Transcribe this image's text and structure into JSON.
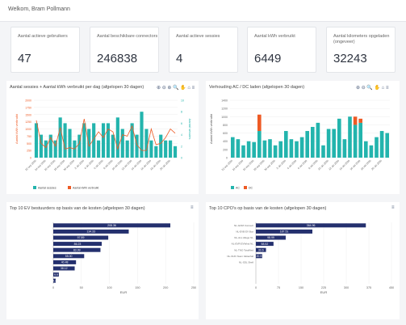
{
  "header": {
    "welcome": "Welkom, Bram Pollmann"
  },
  "cards": [
    {
      "label": "Aantal actieve gebruikers",
      "value": "47"
    },
    {
      "label": "Aantal beschikbare connectors",
      "value": "246838"
    },
    {
      "label": "Aantal actieve sessies",
      "value": "4"
    },
    {
      "label": "Aantal kWh verbruikt",
      "value": "6449"
    },
    {
      "label": "Aantal kilometers opgeladen (ongeveer)",
      "value": "32243"
    }
  ],
  "panels": {
    "sessions": {
      "title": "Aantal sessies + Aantal kWh verbruikt per dag (afgelopen 30 dagen)",
      "toolbar": "⊕ ⊖ ⊕ 🔍 ✋ ⌂ ≡"
    },
    "acdc": {
      "title": "Verhouding AC / DC laden (afgelopen 30 dagen)",
      "toolbar": "⊕ ⊖ 🔍 ✋ ⌂ ≡"
    },
    "ev": {
      "title": "Top 10 EV bestuurders op basis van de kosten (afgelopen 30 dagen)",
      "toolbar": "≡"
    },
    "cpo": {
      "title": "Top 10 CPO's op basis van de kosten (afgelopen 30 dagen)",
      "toolbar": "≡"
    }
  },
  "colors": {
    "teal": "#23b4ad",
    "orange": "#ee5a24",
    "navy": "#24306e",
    "grid": "#eeeeee"
  },
  "chart_data": [
    {
      "type": "bar",
      "title": "Aantal sessies + Aantal kWh verbruikt per dag (afgelopen 30 dagen)",
      "ylabel": "Aantal kWh verbruikt",
      "ylabel_right": "Aantal sessies",
      "ylim": [
        0,
        2000
      ],
      "ylim_right": [
        0,
        10
      ],
      "yticks": [
        "2000",
        "1750",
        "1500",
        "1250",
        "1000",
        "750",
        "500",
        "250",
        "0"
      ],
      "yticks_right": [
        "10",
        "8",
        "6",
        "4",
        "2",
        "0"
      ],
      "categories": [
        "22 sep 2020",
        "23 sep 2020",
        "24 sep 2020",
        "25 sep 2020",
        "26 sep 2020",
        "27 sep 2020",
        "28 sep 2020",
        "29 sep 2020",
        "30 sep 2020",
        "1 oct 2020",
        "2 oct 2020",
        "3 oct 2020",
        "4 oct 2020",
        "5 oct 2020",
        "6 oct 2020",
        "7 oct 2020",
        "8 oct 2020",
        "9 oct 2020",
        "10 oct 2020",
        "11 oct 2020",
        "12 oct 2020",
        "13 oct 2020",
        "14 oct 2020",
        "15 oct 2020",
        "16 oct 2020",
        "17 oct 2020",
        "18 oct 2020",
        "19 oct 2020",
        "20 oct 2020",
        "21 oct 2020"
      ],
      "xtick_labels": [
        "22 sep 2020",
        "24 sep 2020",
        "26 sep 2020",
        "28 sep 2020",
        "30 sep 2020",
        "2 okt 2020",
        "4 okt 2020",
        "6 okt 2020",
        "8 okt 2020",
        "10 okt 2020",
        "12 okt 2020",
        "14 okt 2020",
        "16 okt 2020",
        "18 okt 2020",
        "20 okt 2020"
      ],
      "series": [
        {
          "name": "Aantal sessies",
          "kind": "bar",
          "axis": "right",
          "values": [
            6,
            4,
            3,
            4,
            3,
            7,
            6,
            5,
            3,
            4,
            6,
            5,
            6,
            3,
            6,
            6,
            4,
            7,
            5,
            3,
            6,
            4,
            8,
            5,
            3,
            2,
            4,
            3,
            3,
            2
          ]
        },
        {
          "name": "Aantal kWh verbruikt",
          "kind": "line",
          "axis": "left",
          "values": [
            1300,
            500,
            350,
            700,
            400,
            1050,
            300,
            350,
            300,
            500,
            1350,
            400,
            650,
            900,
            700,
            1000,
            900,
            300,
            800,
            750,
            1100,
            450,
            250,
            250,
            1000,
            450,
            500,
            700,
            1000,
            850
          ]
        }
      ],
      "legend": "bottom"
    },
    {
      "type": "bar",
      "title": "Verhouding AC / DC laden (afgelopen 30 dagen)",
      "ylabel": "Aantal kWh verbruikt",
      "ylim": [
        0,
        1400
      ],
      "yticks": [
        "1400",
        "1200",
        "1000",
        "800",
        "600",
        "400",
        "200",
        "0"
      ],
      "stacked": true,
      "categories": [
        "22 sep 2020",
        "23 sep 2020",
        "24 sep 2020",
        "25 sep 2020",
        "26 sep 2020",
        "27 sep 2020",
        "28 sep 2020",
        "29 sep 2020",
        "30 sep 2020",
        "1 oct 2020",
        "2 oct 2020",
        "3 oct 2020",
        "4 oct 2020",
        "5 oct 2020",
        "6 oct 2020",
        "7 oct 2020",
        "8 oct 2020",
        "9 oct 2020",
        "10 oct 2020",
        "11 oct 2020",
        "12 oct 2020",
        "13 oct 2020",
        "14 oct 2020",
        "15 oct 2020",
        "16 oct 2020",
        "17 oct 2020",
        "18 oct 2020",
        "19 oct 2020",
        "20 oct 2020",
        "21 oct 2020"
      ],
      "xtick_labels": [
        "22 sep 2020",
        "24 sep 2020",
        "26 sep 2020",
        "28 sep 2020",
        "30 sep 2020",
        "2 okt 2020",
        "4 okt 2020",
        "6 okt 2020",
        "8 okt 2020",
        "10 okt 2020",
        "12 okt 2020",
        "14 okt 2020",
        "16 okt 2020",
        "18 okt 2020",
        "20 okt 2020"
      ],
      "series": [
        {
          "name": "AC",
          "values": [
            500,
            450,
            300,
            400,
            380,
            650,
            420,
            450,
            300,
            400,
            650,
            450,
            400,
            500,
            650,
            750,
            850,
            300,
            700,
            700,
            950,
            450,
            1000,
            800,
            850,
            400,
            300,
            500,
            650,
            600
          ]
        },
        {
          "name": "DC",
          "values": [
            0,
            0,
            0,
            0,
            0,
            400,
            0,
            0,
            0,
            0,
            0,
            0,
            0,
            0,
            0,
            0,
            0,
            0,
            0,
            0,
            0,
            0,
            0,
            200,
            100,
            0,
            0,
            0,
            0,
            0
          ]
        }
      ],
      "legend": "bottom"
    },
    {
      "type": "bar",
      "orientation": "horizontal",
      "title": "Top 10 EV bestuurders op basis van de kosten (afgelopen 30 dagen)",
      "xlabel": "EUR",
      "xlim": [
        0,
        250
      ],
      "xticks": [
        "0",
        "50",
        "100",
        "150",
        "200",
        "250"
      ],
      "categories": [
        "",
        "",
        "",
        "",
        "",
        "",
        "",
        "",
        "",
        ""
      ],
      "values": [
        208.36,
        134.33,
        97.89,
        86.23,
        83.99,
        55.0,
        40.48,
        38.12,
        9.9,
        4.3
      ],
      "value_labels": [
        "208.36",
        "134.33",
        "97.89",
        "86.23",
        "83.99",
        "55.00",
        "40.48",
        "38.12",
        "9.9",
        "4.3"
      ]
    },
    {
      "type": "bar",
      "orientation": "horizontal",
      "title": "Top 10 CPO's op basis van de kosten (afgelopen 30 dagen)",
      "xlabel": "EUR",
      "xlim": [
        0,
        450
      ],
      "xticks": [
        "0",
        "75",
        "150",
        "225",
        "300",
        "375",
        "450"
      ],
      "categories": [
        "NL-GOM Connect",
        "NL-EVB EV Box",
        "NL-ALL Allego NL",
        "NL-EVR EVWind NL",
        "NL-TNO TotalNed",
        "NL-NUO Nuon Vattenfall",
        "NL-SDL Shell",
        "",
        "",
        ""
      ],
      "values": [
        364.96,
        187.51,
        98.99,
        58.52,
        33.6,
        20.9,
        0,
        0,
        0,
        0
      ],
      "value_labels": [
        "364.96",
        "187.51",
        "98.99",
        "58.52",
        "33.6",
        "20.9",
        "",
        "",
        "",
        ""
      ]
    }
  ]
}
